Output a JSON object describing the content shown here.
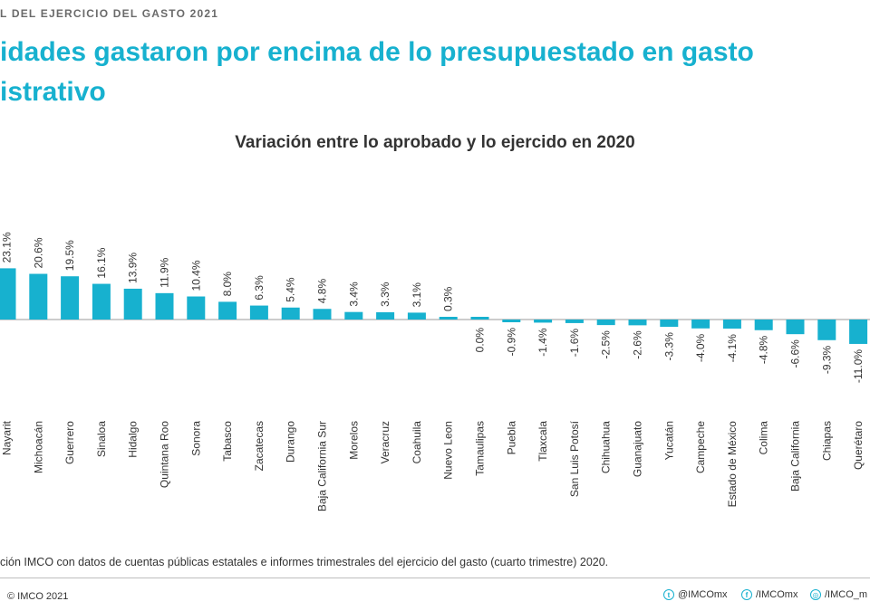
{
  "header": {
    "kicker": "L DEL EJERCICIO DEL GASTO 2021",
    "headline_line1": "idades gastaron por encima de lo presupuestado en gasto",
    "headline_line2": "istrativo"
  },
  "chart_data": {
    "type": "bar",
    "title": "Variación entre lo aprobado y lo ejercido en 2020",
    "xlabel": "",
    "ylabel": "",
    "unit": "%",
    "categories": [
      "Nayarit",
      "Michoacán",
      "Guerrero",
      "Sinaloa",
      "Hidalgo",
      "Quintana Roo",
      "Sonora",
      "Tabasco",
      "Zacatecas",
      "Durango",
      "Baja California Sur",
      "Morelos",
      "Veracruz",
      "Coahuila",
      "Nuevo Leon",
      "Tamaulipas",
      "Puebla",
      "Tlaxcala",
      "San Luis Potosí",
      "Chihuahua",
      "Guanajuato",
      "Yucatán",
      "Campeche",
      "Estado de México",
      "Colima",
      "Baja California",
      "Chiapas",
      "Querétaro"
    ],
    "values": [
      23.1,
      20.6,
      19.5,
      16.1,
      13.9,
      11.9,
      10.4,
      8.0,
      6.3,
      5.4,
      4.8,
      3.4,
      3.3,
      3.1,
      0.3,
      0.0,
      -0.9,
      -1.4,
      -1.6,
      -2.5,
      -2.6,
      -3.3,
      -4.0,
      -4.1,
      -4.8,
      -6.6,
      -9.3,
      -11.0
    ],
    "value_labels": [
      "23.1%",
      "20.6%",
      "19.5%",
      "16.1%",
      "13.9%",
      "11.9%",
      "10.4%",
      "8.0%",
      "6.3%",
      "5.4%",
      "4.8%",
      "3.4%",
      "3.3%",
      "3.1%",
      "0.3%",
      "0.0%",
      "-0.9%",
      "-1.4%",
      "-1.6%",
      "-2.5%",
      "-2.6%",
      "-3.3%",
      "-4.0%",
      "-4.1%",
      "-4.8%",
      "-6.6%",
      "-9.3%",
      "-11.0%"
    ],
    "bar_color": "#17b1cf",
    "grid": false,
    "legend": "none"
  },
  "source": "ción IMCO con datos de cuentas públicas estatales e informes trimestrales del ejercicio del gasto (cuarto trimestre) 2020.",
  "footer": {
    "copyright": "© IMCO 2021",
    "twitter": "@IMCOmx",
    "facebook": "/IMCOmx",
    "instagram": "/IMCO_m"
  },
  "icons": {
    "twitter": "twitter-icon",
    "facebook": "facebook-icon",
    "instagram": "instagram-icon"
  }
}
